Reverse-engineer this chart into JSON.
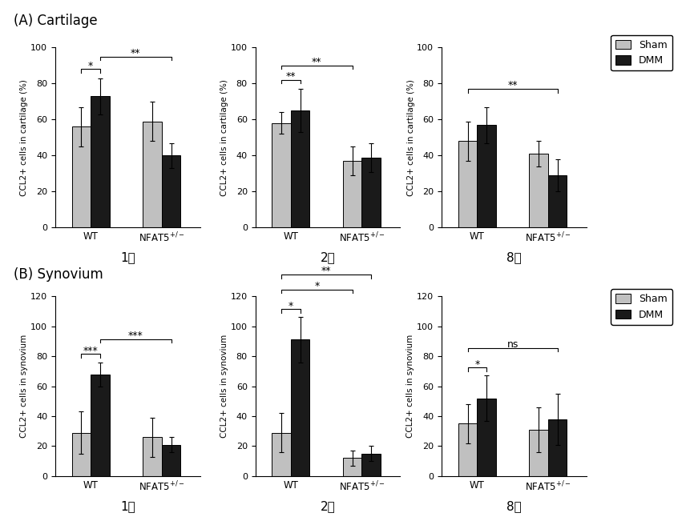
{
  "title_A": "(A) Cartilage",
  "title_B": "(B) Synovium",
  "weeks": [
    "1주",
    "2주",
    "8주"
  ],
  "cartilage": {
    "WT_sham": [
      56,
      58,
      48
    ],
    "WT_dmm": [
      73,
      65,
      57
    ],
    "NFAT_sham": [
      59,
      37,
      41
    ],
    "NFAT_dmm": [
      40,
      39,
      29
    ],
    "WT_sham_err": [
      11,
      6,
      11
    ],
    "WT_dmm_err": [
      10,
      12,
      10
    ],
    "NFAT_sham_err": [
      11,
      8,
      7
    ],
    "NFAT_dmm_err": [
      7,
      8,
      9
    ],
    "ylabel": "CCL2+ cells in cartilage (%)"
  },
  "synovium": {
    "WT_sham": [
      29,
      29,
      35
    ],
    "WT_dmm": [
      68,
      91,
      52
    ],
    "NFAT_sham": [
      26,
      12,
      31
    ],
    "NFAT_dmm": [
      21,
      15,
      38
    ],
    "WT_sham_err": [
      14,
      13,
      13
    ],
    "WT_dmm_err": [
      8,
      15,
      15
    ],
    "NFAT_sham_err": [
      13,
      5,
      15
    ],
    "NFAT_dmm_err": [
      5,
      5,
      17
    ],
    "ylabel": "CCL2+ cells in synovium"
  },
  "sham_color": "#c0c0c0",
  "dmm_color": "#1a1a1a",
  "bar_width": 0.32,
  "group_centers": [
    1.0,
    2.2
  ],
  "cartilage_ylim": [
    0,
    100
  ],
  "cartilage_yticks": [
    0,
    20,
    40,
    60,
    80,
    100
  ],
  "synovium_ylim": [
    0,
    120
  ],
  "synovium_yticks": [
    0,
    20,
    40,
    60,
    80,
    100,
    120
  ],
  "legend_labels": [
    "Sham",
    "DMM"
  ]
}
